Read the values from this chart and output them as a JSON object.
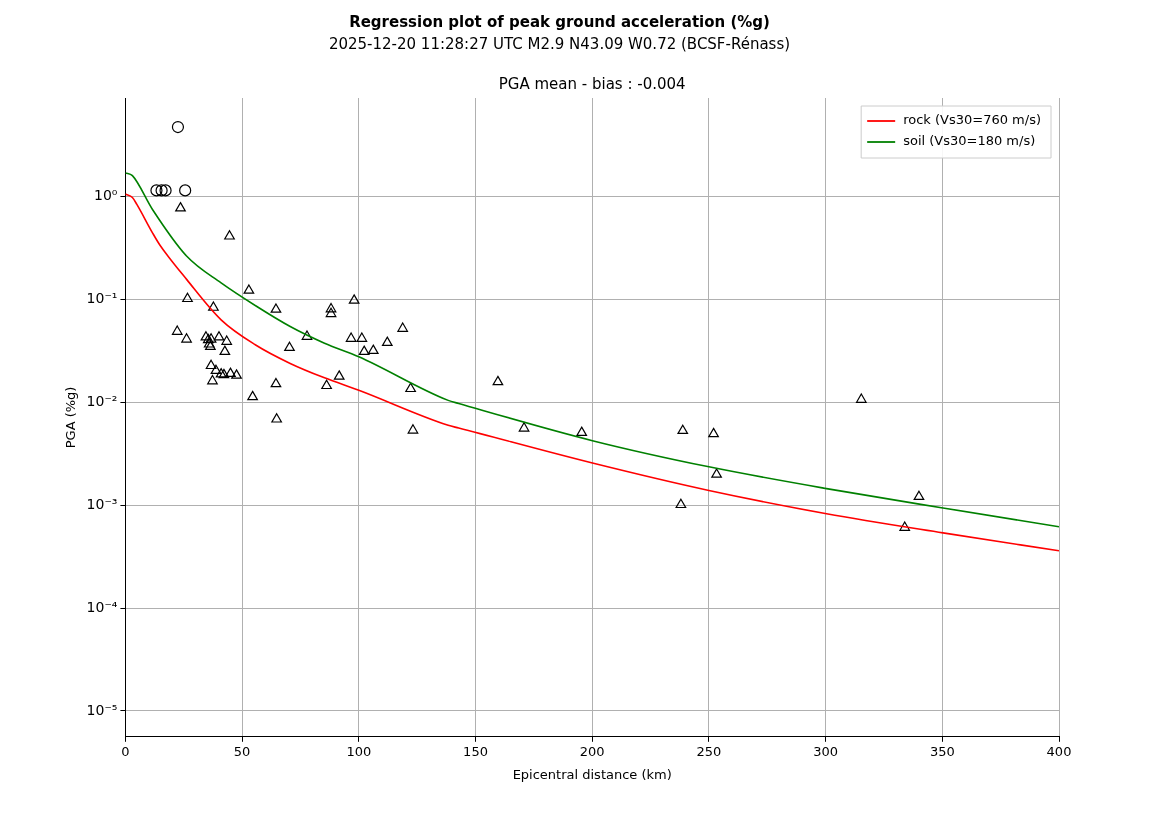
{
  "chart_data": {
    "type": "scatter",
    "title": "Regression plot of peak ground acceleration (%g)",
    "subtitle": "2025-12-20 11:28:27 UTC M2.9 N43.09 W0.72 (BCSF-Rénass)",
    "annotations": [
      "PGA mean - bias : -0.004"
    ],
    "xlabel": "Epicentral distance (km)",
    "ylabel": "PGA (%g)",
    "xlim": [
      0,
      400
    ],
    "xticks": [
      0,
      50,
      100,
      150,
      200,
      250,
      300,
      350,
      400
    ],
    "ylim": [
      5.6e-06,
      9.1
    ],
    "log": "y",
    "yticks": [
      {
        "value": 1e-05,
        "label": "10⁻⁵"
      },
      {
        "value": 0.0001,
        "label": "10⁻⁴"
      },
      {
        "value": 0.001,
        "label": "10⁻³"
      },
      {
        "value": 0.01,
        "label": "10⁻²"
      },
      {
        "value": 0.1,
        "label": "10⁻¹"
      },
      {
        "value": 1,
        "label": "10⁰"
      }
    ],
    "grid": true,
    "legend": "top right",
    "series": [
      {
        "name": "rock (Vs30=760 m/s)",
        "type": "line",
        "marker": "none",
        "color": "#ff0000",
        "x": [
          0,
          3,
          4.9,
          11.6,
          14.6,
          26.3,
          41,
          55.8,
          70.6,
          85.3,
          100,
          138.3,
          142.8,
          200.1,
          250,
          300.4,
          350.3,
          400
        ],
        "values": [
          1.06,
          0.98,
          0.84,
          0.445,
          0.343,
          0.156,
          0.0634,
          0.0361,
          0.0239,
          0.0173,
          0.0131,
          0.00598,
          0.00563,
          0.00257,
          0.00139,
          0.000826,
          0.000538,
          0.00036
        ]
      },
      {
        "name": "soil (Vs30=180 m/s)",
        "type": "line",
        "marker": "none",
        "color": "#008000",
        "x": [
          0,
          3,
          11.6,
          26.3,
          41,
          55.8,
          70.6,
          85.3,
          100,
          138.3,
          142.8,
          200.1,
          250,
          300.4,
          350.3,
          400
        ],
        "values": [
          1.7,
          1.6,
          0.75,
          0.263,
          0.145,
          0.0869,
          0.0546,
          0.0376,
          0.0278,
          0.01045,
          0.00975,
          0.00424,
          0.00236,
          0.00145,
          0.00094,
          0.000618
        ]
      },
      {
        "marker": "circle",
        "color": "#000000",
        "x": [
          13.3,
          15.5,
          17.2,
          25.6,
          22.5
        ],
        "values": [
          1.15,
          1.15,
          1.15,
          1.15,
          4.75
        ]
      },
      {
        "marker": "triangle",
        "color": "#000000",
        "x": [
          23.6,
          44.6,
          52.9,
          26.6,
          37.7,
          22.2,
          26.2,
          34.5,
          35.5,
          36.7,
          40.1,
          43.4,
          35.9,
          36.4,
          42.6,
          36.7,
          38.8,
          41,
          42.2,
          45,
          47.6,
          37.3,
          64.5,
          54.5,
          64.5,
          64.8,
          70.3,
          77.8,
          88.1,
          88.1,
          98,
          96.7,
          101.3,
          102.3,
          106.2,
          112.2,
          118.8,
          86.2,
          91.6,
          122.2,
          123.2,
          159.6,
          170.8,
          195.5,
          238.8,
          252,
          238,
          253.3,
          315.3,
          340,
          333.9
        ],
        "values": [
          0.774,
          0.412,
          0.1225,
          0.1017,
          0.0836,
          0.0488,
          0.041,
          0.043,
          0.0405,
          0.041,
          0.043,
          0.039,
          0.0367,
          0.0348,
          0.0311,
          0.0227,
          0.0203,
          0.0188,
          0.0185,
          0.019,
          0.0183,
          0.0161,
          0.08,
          0.0113,
          0.0151,
          0.00685,
          0.034,
          0.0436,
          0.0807,
          0.0726,
          0.098,
          0.0417,
          0.0417,
          0.0311,
          0.0318,
          0.0381,
          0.0522,
          0.0145,
          0.0179,
          0.01355,
          0.00535,
          0.0158,
          0.00559,
          0.00508,
          0.0053,
          0.00494,
          0.00101,
          0.00199,
          0.01065,
          0.00121,
          0.000606
        ]
      }
    ]
  }
}
